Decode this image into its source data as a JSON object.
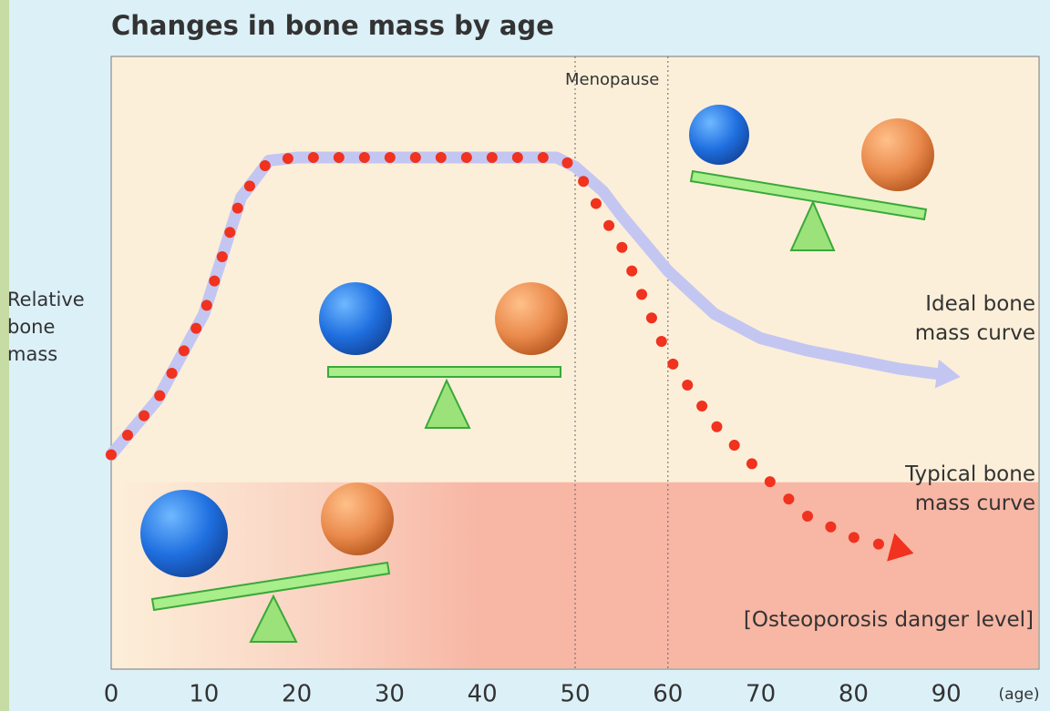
{
  "chart_data": {
    "type": "line",
    "title": "Changes in bone mass by age",
    "y_label": "Relative bone mass",
    "x_label": "(age)",
    "x": [
      0,
      5,
      10,
      14,
      17,
      20,
      30,
      40,
      48,
      50,
      53,
      55,
      60,
      65,
      70,
      75,
      80,
      85,
      90
    ],
    "series": [
      {
        "name": "Ideal bone mass curve",
        "color": "#c4c6f2",
        "style": "solid",
        "values": [
          35,
          44,
          58,
          77,
          83,
          83.5,
          83.5,
          83.5,
          83.5,
          82,
          78,
          74,
          65,
          58,
          54,
          52,
          50.5,
          49,
          48
        ]
      },
      {
        "name": "Typical bone mass curve",
        "color": "#f0321e",
        "style": "dotted",
        "values": [
          35,
          44,
          58,
          77,
          83,
          83.5,
          83.5,
          83.5,
          83.5,
          82,
          74,
          69,
          51,
          40,
          32,
          25,
          21.5,
          19.5,
          null
        ]
      }
    ],
    "xlim": [
      0,
      100
    ],
    "xticks": [
      0,
      10,
      20,
      30,
      40,
      50,
      60,
      70,
      80,
      90
    ],
    "ylim": [
      0,
      100
    ],
    "reference_lines": {
      "label": "Menopause",
      "x": [
        50,
        60
      ]
    },
    "danger_zone": {
      "label": "[Osteoporosis danger level]",
      "y": 30.5,
      "color": "#f8b6a4"
    }
  }
}
